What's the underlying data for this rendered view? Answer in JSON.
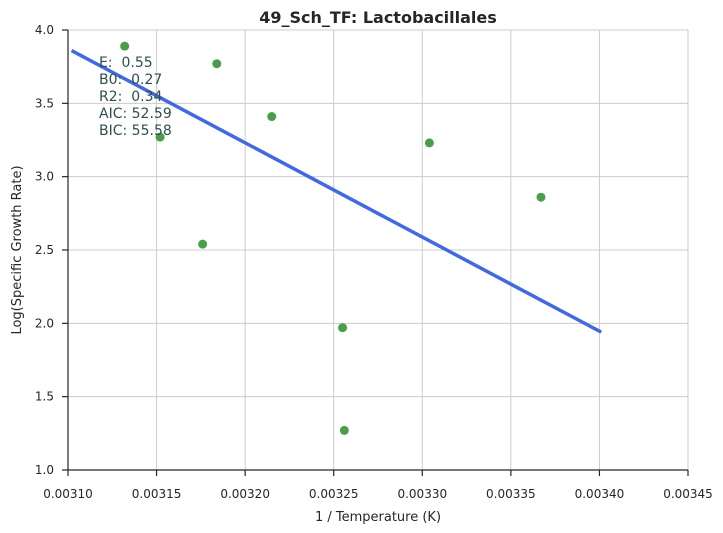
{
  "chart_data": {
    "type": "scatter",
    "title": "49_Sch_TF: Lactobacillales",
    "xlabel": "1 / Temperature (K)",
    "ylabel": "Log(Specific Growth Rate)",
    "xlim": [
      0.0031,
      0.00345
    ],
    "ylim": [
      1.0,
      4.0
    ],
    "x_ticks": [
      0.0031,
      0.00315,
      0.0032,
      0.00325,
      0.0033,
      0.00335,
      0.0034,
      0.00345
    ],
    "x_tick_labels": [
      "0.00310",
      "0.00315",
      "0.00320",
      "0.00325",
      "0.00330",
      "0.00335",
      "0.00340",
      "0.00345"
    ],
    "y_ticks": [
      1.0,
      1.5,
      2.0,
      2.5,
      3.0,
      3.5,
      4.0
    ],
    "y_tick_labels": [
      "1.0",
      "1.5",
      "2.0",
      "2.5",
      "3.0",
      "3.5",
      "4.0"
    ],
    "grid": true,
    "points": {
      "color": "#4a9e4a",
      "x": [
        0.003132,
        0.003152,
        0.003176,
        0.003184,
        0.003215,
        0.003255,
        0.003256,
        0.003304,
        0.003367
      ],
      "y": [
        3.89,
        3.27,
        2.54,
        3.77,
        3.41,
        1.97,
        1.27,
        3.23,
        2.86
      ]
    },
    "fit_line": {
      "color": "#4169e1",
      "x": [
        0.003102,
        0.003401
      ],
      "y": [
        3.86,
        1.94
      ]
    },
    "annotations": [
      "E:  0.55",
      "B0:  0.27",
      "R2:  0.34",
      "AIC: 52.59",
      "BIC: 55.58"
    ]
  }
}
